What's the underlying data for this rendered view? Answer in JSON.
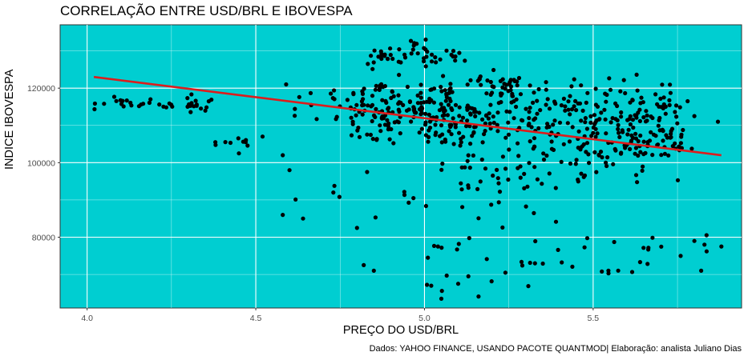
{
  "chart_data": {
    "type": "scatter",
    "title": "CORRELAÇÃO ENTRE USD/BRL E IBOVESPA",
    "xlabel": "PREÇO DO USD/BRL",
    "ylabel": "INDICE IBOVESPA",
    "caption": "Dados: YAHOO FINANCE, USANDO PACOTE QUANTMOD| Elaboração: analista Juliano Dias",
    "xlim": [
      3.92,
      5.94
    ],
    "ylim": [
      61000,
      137000
    ],
    "x_ticks": [
      4.0,
      4.5,
      5.0,
      5.5
    ],
    "x_tick_labels": [
      "4.0",
      "4.5",
      "5.0",
      "5.5"
    ],
    "y_ticks": [
      80000,
      100000,
      120000
    ],
    "y_tick_labels": [
      "80000",
      "100000",
      "120000"
    ],
    "grid": true,
    "legend": "none",
    "panel_background": "#00CED1",
    "grid_color": "#ffffff",
    "point_color": "#000000",
    "trend_color": "#dd1c1c",
    "trend_line": {
      "x": [
        4.02,
        5.88
      ],
      "y": [
        123000,
        102000
      ]
    },
    "clusters": [
      {
        "n": 40,
        "x_range": [
          4.02,
          4.37
        ],
        "y_range": [
          112500,
          119000
        ]
      },
      {
        "n": 7,
        "x_range": [
          4.38,
          4.52
        ],
        "y_range": [
          103000,
          107500
        ]
      },
      {
        "n": 170,
        "x_range": [
          4.78,
          5.08
        ],
        "y_range": [
          104000,
          124000
        ]
      },
      {
        "n": 35,
        "x_range": [
          4.83,
          5.02
        ],
        "y_range": [
          124000,
          134500
        ]
      },
      {
        "n": 320,
        "x_range": [
          5.05,
          5.75
        ],
        "y_range": [
          97000,
          125000
        ]
      },
      {
        "n": 25,
        "x_range": [
          5.1,
          5.5
        ],
        "y_range": [
          91000,
          100000
        ]
      },
      {
        "n": 60,
        "x_range": [
          5.45,
          5.8
        ],
        "y_range": [
          94000,
          118000
        ]
      },
      {
        "n": 25,
        "x_range": [
          5.15,
          5.3
        ],
        "y_range": [
          117000,
          126000
        ]
      },
      {
        "n": 15,
        "x_range": [
          5.0,
          5.12
        ],
        "y_range": [
          126000,
          131000
        ]
      },
      {
        "n": 40,
        "x_range": [
          5.0,
          5.88
        ],
        "y_range": [
          63500,
          82000
        ]
      },
      {
        "n": 18,
        "x_range": [
          4.58,
          5.4
        ],
        "y_range": [
          82000,
          98000
        ]
      },
      {
        "n": 14,
        "x_range": [
          4.6,
          4.78
        ],
        "y_range": [
          108000,
          121500
        ]
      }
    ],
    "points": [
      {
        "x": 4.58,
        "y": 86000
      },
      {
        "x": 4.64,
        "y": 85000
      },
      {
        "x": 4.59,
        "y": 121000
      },
      {
        "x": 4.8,
        "y": 82500
      },
      {
        "x": 4.82,
        "y": 72500
      },
      {
        "x": 4.85,
        "y": 71000
      },
      {
        "x": 4.73,
        "y": 92000
      },
      {
        "x": 4.83,
        "y": 97500
      },
      {
        "x": 4.6,
        "y": 98000
      },
      {
        "x": 4.58,
        "y": 102000
      },
      {
        "x": 5.02,
        "y": 67000
      },
      {
        "x": 5.05,
        "y": 63500
      },
      {
        "x": 5.1,
        "y": 67500
      },
      {
        "x": 5.13,
        "y": 69500
      },
      {
        "x": 5.24,
        "y": 70500
      },
      {
        "x": 5.01,
        "y": 74500
      },
      {
        "x": 5.04,
        "y": 77500
      },
      {
        "x": 5.88,
        "y": 77500
      },
      {
        "x": 5.83,
        "y": 78000
      },
      {
        "x": 5.8,
        "y": 79000
      },
      {
        "x": 5.87,
        "y": 111000
      },
      {
        "x": 5.8,
        "y": 112500
      },
      {
        "x": 5.78,
        "y": 116500
      },
      {
        "x": 4.38,
        "y": 105500
      },
      {
        "x": 4.52,
        "y": 107000
      },
      {
        "x": 4.47,
        "y": 105500
      },
      {
        "x": 4.45,
        "y": 102500
      }
    ]
  }
}
